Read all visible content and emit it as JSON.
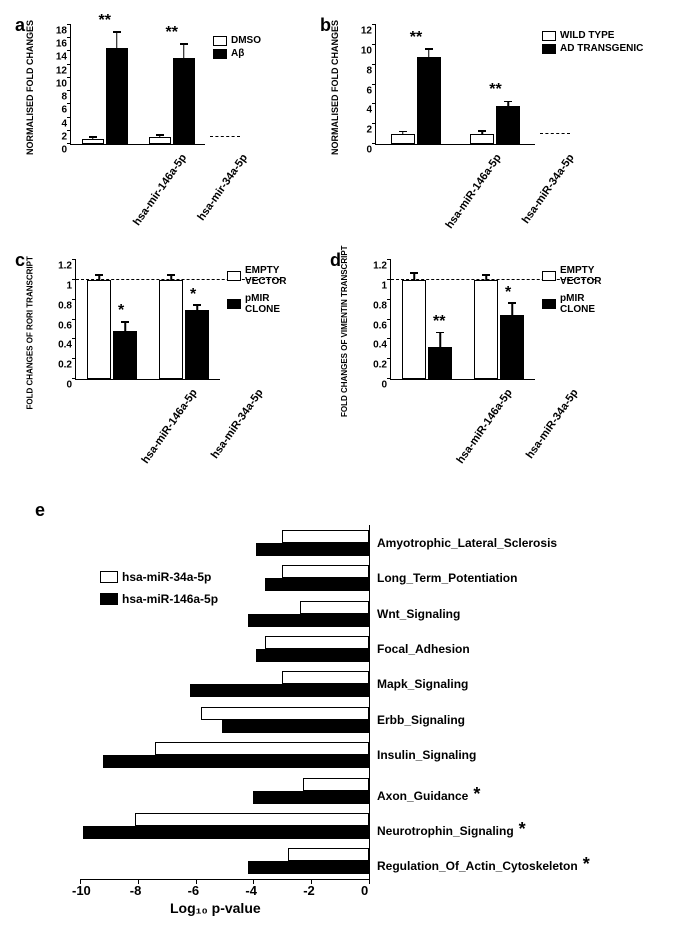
{
  "panel_a": {
    "label": "a",
    "y_label": "NORMALISED FOLD CHANGES",
    "y_max": 18,
    "y_tick_step": 2,
    "categories": [
      "hsa-mir-146a-5p",
      "hsa-mir-34a-5p"
    ],
    "series": [
      {
        "name": "DMSO",
        "color": "#ffffff",
        "values": [
          0.8,
          1.0
        ],
        "errors": [
          0.3,
          0.4
        ]
      },
      {
        "name": "Aβ",
        "color": "#000000",
        "values": [
          14.5,
          13.0
        ],
        "errors": [
          2.5,
          2.2
        ]
      }
    ],
    "signif": [
      "**",
      "**"
    ]
  },
  "panel_b": {
    "label": "b",
    "y_label": "NORMALISED FOLD CHANGES",
    "y_max": 12,
    "y_tick_step": 2,
    "categories": [
      "hsa-miR-146a-5p",
      "hsa-miR-34a-5p"
    ],
    "series": [
      {
        "name": "WILD TYPE",
        "color": "#ffffff",
        "values": [
          1.0,
          1.0
        ],
        "errors": [
          0.3,
          0.35
        ]
      },
      {
        "name": "AD TRANSGENIC",
        "color": "#000000",
        "values": [
          8.8,
          3.8
        ],
        "errors": [
          0.8,
          0.5
        ]
      }
    ],
    "signif": [
      "**",
      "**"
    ]
  },
  "panel_c": {
    "label": "c",
    "y_label": "FOLD CHANGES OF RORI TRANSCRIPT",
    "y_max": 1.2,
    "y_ticks": [
      0,
      0.2,
      0.4,
      0.6,
      0.8,
      1,
      1.2
    ],
    "categories": [
      "hsa-miR-146a-5p",
      "hsa-miR-34a-5p"
    ],
    "series": [
      {
        "name": "EMPTY VECTOR",
        "color": "#ffffff",
        "values": [
          1.0,
          1.0
        ],
        "errors": [
          0.05,
          0.05
        ]
      },
      {
        "name": "pMIR CLONE",
        "color": "#000000",
        "values": [
          0.48,
          0.7
        ],
        "errors": [
          0.1,
          0.05
        ]
      }
    ],
    "signif": [
      "*",
      "*"
    ],
    "baseline": 1.0
  },
  "panel_d": {
    "label": "d",
    "y_label": "FOLD CHANGES OF VIMENTIN TRANSCRIPT",
    "y_max": 1.2,
    "y_ticks": [
      0,
      0.2,
      0.4,
      0.6,
      0.8,
      1,
      1.2
    ],
    "categories": [
      "hsa-miR-146a-5p",
      "hsa-miR-34a-5p"
    ],
    "series": [
      {
        "name": "EMPTY VECTOR",
        "color": "#ffffff",
        "values": [
          1.0,
          1.0
        ],
        "errors": [
          0.07,
          0.05
        ]
      },
      {
        "name": "pMIR CLONE",
        "color": "#000000",
        "values": [
          0.32,
          0.65
        ],
        "errors": [
          0.15,
          0.12
        ]
      }
    ],
    "signif": [
      "**",
      "*"
    ],
    "baseline": 1.0
  },
  "panel_e": {
    "label": "e",
    "x_label": "Log₁₀ p-value",
    "x_min": -10,
    "x_max": 0,
    "x_tick_step": 2,
    "legend": [
      {
        "name": "hsa-miR-34a-5p",
        "color": "#ffffff"
      },
      {
        "name": "hsa-miR-146a-5p",
        "color": "#000000"
      }
    ],
    "pathways": [
      {
        "label": "Amyotrophic_Lateral_Sclerosis",
        "v34": -3.0,
        "v146": -3.9,
        "star": false
      },
      {
        "label": "Long_Term_Potentiation",
        "v34": -3.0,
        "v146": -3.6,
        "star": false
      },
      {
        "label": "Wnt_Signaling",
        "v34": -2.4,
        "v146": -4.2,
        "star": false
      },
      {
        "label": "Focal_Adhesion",
        "v34": -3.6,
        "v146": -3.9,
        "star": false
      },
      {
        "label": "Mapk_Signaling",
        "v34": -3.0,
        "v146": -6.2,
        "star": false
      },
      {
        "label": "Erbb_Signaling",
        "v34": -5.8,
        "v146": -5.1,
        "star": false
      },
      {
        "label": "Insulin_Signaling",
        "v34": -7.4,
        "v146": -9.2,
        "star": false
      },
      {
        "label": "Axon_Guidance",
        "v34": -2.3,
        "v146": -4.0,
        "star": true
      },
      {
        "label": "Neurotrophin_Signaling",
        "v34": -8.1,
        "v146": -9.9,
        "star": true
      },
      {
        "label": "Regulation_Of_Actin_Cytoskeleton",
        "v34": -2.8,
        "v146": -4.2,
        "star": true
      }
    ]
  }
}
